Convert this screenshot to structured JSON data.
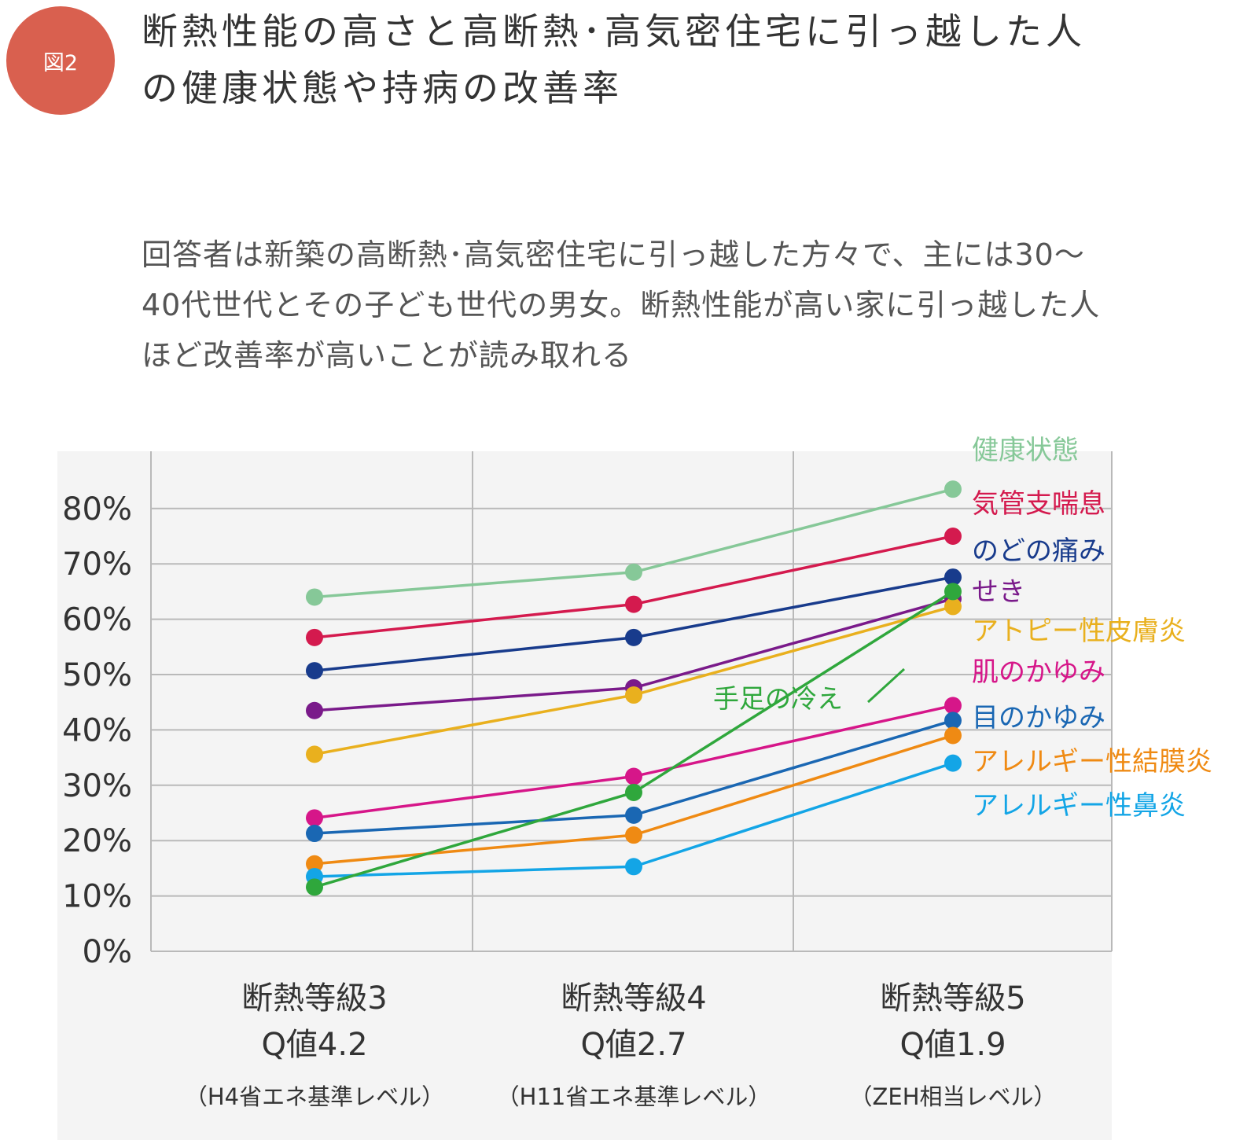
{
  "header": {
    "badge": "図2",
    "title": "断熱性能の高さと高断熱･高気密住宅に引っ越した人の健康状態や持病の改善率"
  },
  "description": "回答者は新築の高断熱･高気密住宅に引っ越した方々で、主には30～40代世代とその子ども世代の男女。断熱性能が高い家に引っ越した人ほど改善率が高いことが読み取れる",
  "chart_data": {
    "type": "line",
    "categories": [
      [
        "断熱等級3",
        "Q値4.2",
        "（H4省エネ基準レベル）"
      ],
      [
        "断熱等級4",
        "Q値2.7",
        "（H11省エネ基準レベル）"
      ],
      [
        "断熱等級5",
        "Q値1.9",
        "（ZEH相当レベル）"
      ]
    ],
    "y_ticks": [
      "0%",
      "10%",
      "20%",
      "30%",
      "40%",
      "50%",
      "60%",
      "70%",
      "80%"
    ],
    "ylim": [
      0,
      90
    ],
    "grid": true,
    "legend": "right, labels next to line ends",
    "series": [
      {
        "name": "健康状態",
        "color": "#86c898",
        "values": [
          64,
          68.5,
          83.5
        ]
      },
      {
        "name": "気管支喘息",
        "color": "#d41a4e",
        "values": [
          56.7,
          62.7,
          75
        ]
      },
      {
        "name": "のどの痛み",
        "color": "#183b8c",
        "values": [
          50.7,
          56.7,
          67.6
        ]
      },
      {
        "name": "せき",
        "color": "#7a1a8a",
        "values": [
          43.5,
          47.6,
          63.7
        ]
      },
      {
        "name": "アトピー性皮膚炎",
        "color": "#e9b01e",
        "values": [
          35.6,
          46.3,
          62.3
        ]
      },
      {
        "name": "肌のかゆみ",
        "color": "#d61689",
        "values": [
          24.1,
          31.6,
          44.4
        ]
      },
      {
        "name": "目のかゆみ",
        "color": "#1a67b3",
        "values": [
          21.3,
          24.6,
          41.7
        ]
      },
      {
        "name": "アレルギー性結膜炎",
        "color": "#ef8a13",
        "values": [
          15.8,
          21,
          39
        ]
      },
      {
        "name": "アレルギー性鼻炎",
        "color": "#13a5e6",
        "values": [
          13.5,
          15.3,
          34
        ]
      },
      {
        "name": "手足の冷え",
        "color": "#2fa73c",
        "values": [
          11.6,
          28.7,
          65
        ]
      }
    ]
  }
}
